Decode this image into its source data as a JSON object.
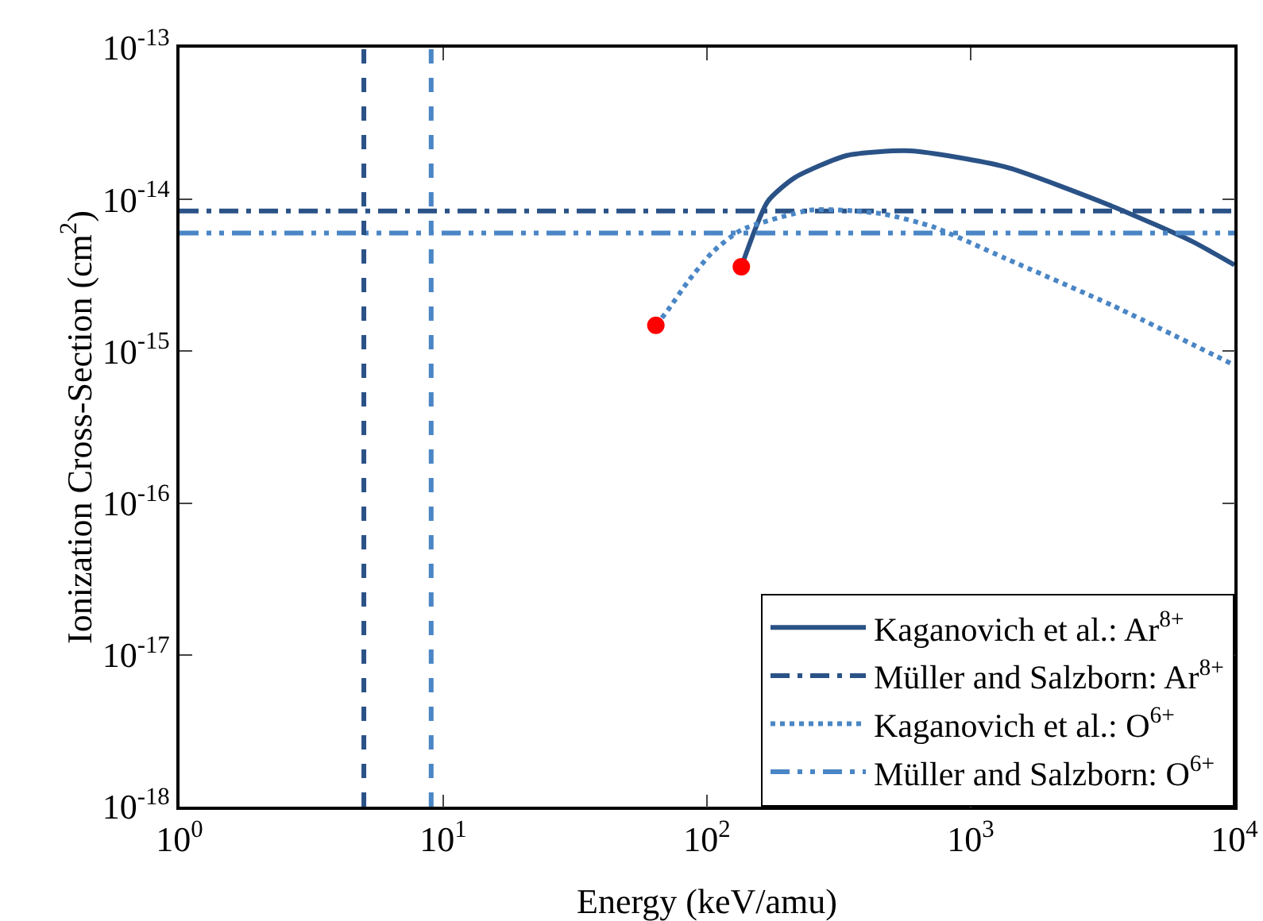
{
  "chart_data": {
    "type": "line",
    "xlabel": "Energy (keV/amu)",
    "ylabel": "Ionization Cross-Section (cm$^{2}$)",
    "log": "xy",
    "grid": false,
    "legend": "bottom right",
    "xlim": [
      1,
      10000
    ],
    "ylim": [
      1e-18,
      1e-13
    ],
    "xticks": [
      {
        "value": 1,
        "label": "10$^{0}$"
      },
      {
        "value": 10,
        "label": "10$^{1}$"
      },
      {
        "value": 100,
        "label": "10$^{2}$"
      },
      {
        "value": 1000,
        "label": "10$^{3}$"
      },
      {
        "value": 10000,
        "label": "10$^{4}$"
      }
    ],
    "yticks": [
      {
        "value": 1e-18,
        "label": "10$^{-18}$"
      },
      {
        "value": 1e-17,
        "label": "10$^{-17}$"
      },
      {
        "value": 1e-16,
        "label": "10$^{-16}$"
      },
      {
        "value": 1e-15,
        "label": "10$^{-15}$"
      },
      {
        "value": 1e-14,
        "label": "10$^{-14}$"
      },
      {
        "value": 1e-13,
        "label": "10$^{-13}$"
      }
    ],
    "series": [
      {
        "name": "Kaganovich et al.: Ar$^{8+}$",
        "line_style": "solid",
        "color": "#2a5286",
        "x": [
          135,
          170,
          215,
          340,
          590,
          1350,
          3450,
          6900,
          10000
        ],
        "values": [
          3.6e-15,
          9.7e-15,
          1.39e-14,
          1.95e-14,
          2.09e-14,
          1.64e-14,
          9e-15,
          5.3e-15,
          3.7e-15
        ]
      },
      {
        "name": "Müller and Salzborn: Ar$^{8+}$",
        "line_style": "dashdot",
        "color": "#2a5286",
        "x": [
          1,
          10000
        ],
        "values": [
          8.4e-15,
          8.4e-15
        ]
      },
      {
        "name": "Kaganovich et al.: O$^{6+}$",
        "line_style": "dotted",
        "color": "#4a86c5",
        "x": [
          64,
          71,
          85,
          105,
          135,
          246,
          325,
          470,
          720,
          1350,
          3450,
          10000
        ],
        "values": [
          1.48e-15,
          1.86e-15,
          2.9e-15,
          4.5e-15,
          6.3e-15,
          8.5e-15,
          8.5e-15,
          8e-15,
          6.6e-15,
          4.1e-15,
          2e-15,
          8.1e-16
        ]
      },
      {
        "name": "Müller and Salzborn: O$^{6+}$",
        "line_style": "dashdotdot",
        "color": "#4a86c5",
        "x": [
          1,
          10000
        ],
        "values": [
          6e-15,
          6e-15
        ]
      },
      {
        "type": "scatter",
        "marker": "circle",
        "color": "#ff0000",
        "x": [
          64,
          135
        ],
        "values": [
          1.48e-15,
          3.6e-15
        ]
      }
    ],
    "ref_lines": [
      {
        "axis": "x",
        "value": 5,
        "color": "#2a5286",
        "line_style": "dashed"
      },
      {
        "axis": "x",
        "value": 9,
        "color": "#4a86c5",
        "line_style": "dashed"
      }
    ]
  }
}
